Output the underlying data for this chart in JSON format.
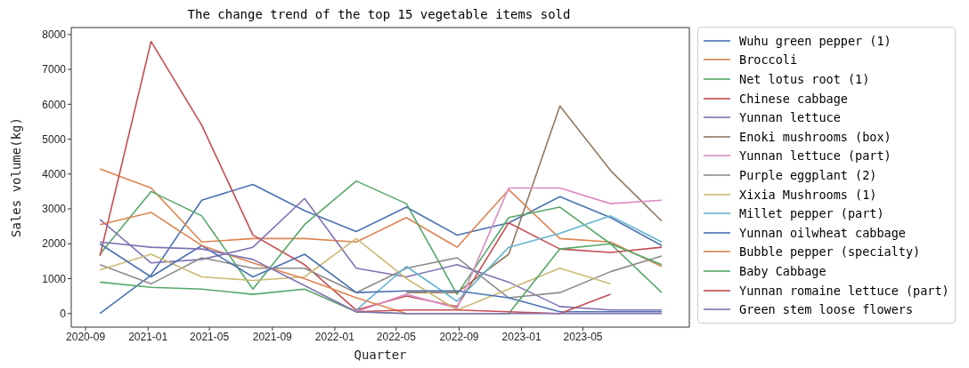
{
  "chart_data": {
    "type": "line",
    "title": "The change trend of the top 15 vegetable items sold",
    "xlabel": "Quarter",
    "ylabel": "Sales volume(kg)",
    "x": [
      "2020-09-29",
      "2021-01-07",
      "2021-04-16",
      "2021-07-25",
      "2021-11-03",
      "2022-02-12",
      "2022-05-21",
      "2022-08-28",
      "2022-12-07",
      "2023-03-17",
      "2023-06-24",
      "2023-10-02"
    ],
    "xlim": [
      "2020-08-04",
      "2023-11-25"
    ],
    "xticks": [
      "2020-09",
      "2021-01",
      "2021-05",
      "2021-09",
      "2022-01",
      "2022-05",
      "2022-09",
      "2023-01",
      "2023-05"
    ],
    "ylim": [
      -390,
      8200
    ],
    "yticks": [
      0,
      1000,
      2000,
      3000,
      4000,
      5000,
      6000,
      7000,
      8000
    ],
    "legend": "right",
    "series": [
      {
        "name": "Wuhu green pepper (1)",
        "color": "#4c72b0",
        "values": [
          0,
          1100,
          3250,
          3700,
          2950,
          2350,
          3050,
          2250,
          2600,
          3350,
          2750,
          1950
        ]
      },
      {
        "name": "Broccoli",
        "color": "#dd8452",
        "values": [
          4150,
          3600,
          2050,
          2150,
          2150,
          2050,
          2750,
          1900,
          3550,
          2150,
          2050,
          1350
        ]
      },
      {
        "name": "Net lotus root (1)",
        "color": "#55a868",
        "values": [
          1700,
          3500,
          2800,
          700,
          2550,
          3800,
          3150,
          550,
          2750,
          3050,
          2000,
          600
        ]
      },
      {
        "name": "Chinese cabbage",
        "color": "#c44e52",
        "values": [
          1650,
          7800,
          5400,
          2250,
          1400,
          100,
          500,
          200,
          2600,
          1850,
          1750,
          1900
        ]
      },
      {
        "name": "Yunnan lettuce",
        "color": "#8172b3",
        "values": [
          2700,
          1450,
          1550,
          1900,
          3300,
          1300,
          1050,
          1400,
          900,
          200,
          100,
          100
        ]
      },
      {
        "name": "Enoki mushrooms (box)",
        "color": "#937860",
        "values": [
          null,
          null,
          null,
          null,
          null,
          null,
          600,
          600,
          1700,
          5950,
          4100,
          2650
        ]
      },
      {
        "name": "Yunnan lettuce (part)",
        "color": "#da8bc3",
        "values": [
          null,
          null,
          null,
          null,
          null,
          50,
          550,
          150,
          3600,
          3600,
          3150,
          3250
        ]
      },
      {
        "name": "Purple eggplant (2)",
        "color": "#8c8c8c",
        "values": [
          1400,
          850,
          1600,
          1300,
          1300,
          600,
          1300,
          1600,
          450,
          600,
          1200,
          1650
        ]
      },
      {
        "name": "Xixia Mushrooms (1)",
        "color": "#ccb974",
        "values": [
          1250,
          1700,
          1050,
          950,
          1050,
          2150,
          1000,
          100,
          700,
          1300,
          850,
          null
        ]
      },
      {
        "name": "Millet pepper (part)",
        "color": "#64b5cd",
        "values": [
          null,
          null,
          null,
          null,
          null,
          100,
          1350,
          350,
          1900,
          2300,
          2800,
          2050
        ]
      },
      {
        "name": "Yunnan oilwheat cabbage",
        "color": "#4c72b0",
        "values": [
          2000,
          1050,
          1950,
          1050,
          1700,
          600,
          650,
          650,
          450,
          50,
          50,
          50
        ]
      },
      {
        "name": "Bubble pepper (specialty)",
        "color": "#dd8452",
        "values": [
          2550,
          2900,
          1950,
          1450,
          1000,
          450,
          0,
          null,
          null,
          null,
          null,
          null
        ]
      },
      {
        "name": "Baby Cabbage",
        "color": "#55a868",
        "values": [
          900,
          750,
          700,
          550,
          700,
          50,
          0,
          0,
          0,
          1850,
          2000,
          1400
        ]
      },
      {
        "name": "Yunnan romaine lettuce (part)",
        "color": "#c44e52",
        "values": [
          null,
          null,
          null,
          null,
          null,
          50,
          100,
          100,
          50,
          0,
          550,
          null
        ]
      },
      {
        "name": "Green stem loose flowers",
        "color": "#8172b3",
        "values": [
          2050,
          1900,
          1850,
          1550,
          800,
          50,
          0,
          0,
          0,
          0,
          0,
          0
        ]
      }
    ]
  }
}
